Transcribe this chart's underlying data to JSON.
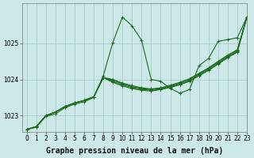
{
  "xlabel": "Graphe pression niveau de la mer (hPa)",
  "bg_color": "#cce8e8",
  "grid_color": "#aacccc",
  "line_color": "#1a6b1a",
  "xlim": [
    -0.5,
    23
  ],
  "ylim": [
    1022.55,
    1026.1
  ],
  "yticks": [
    1023,
    1024,
    1025
  ],
  "xticks": [
    0,
    1,
    2,
    3,
    4,
    5,
    6,
    7,
    8,
    9,
    10,
    11,
    12,
    13,
    14,
    15,
    16,
    17,
    18,
    19,
    20,
    21,
    22,
    23
  ],
  "series": [
    [
      1022.62,
      1022.68,
      1022.98,
      1023.05,
      1023.22,
      1023.32,
      1023.38,
      1023.5,
      1024.1,
      1025.02,
      1025.72,
      1025.48,
      1025.08,
      1024.0,
      1023.95,
      1023.75,
      1023.62,
      1023.72,
      1024.38,
      1024.58,
      1025.05,
      1025.1,
      1025.15,
      1025.72
    ],
    [
      1022.62,
      1022.7,
      1023.0,
      1023.1,
      1023.25,
      1023.35,
      1023.42,
      1023.52,
      1024.05,
      1023.92,
      1023.82,
      1023.75,
      1023.7,
      1023.68,
      1023.72,
      1023.78,
      1023.85,
      1023.95,
      1024.1,
      1024.25,
      1024.42,
      1024.6,
      1024.75,
      1025.72
    ],
    [
      1022.62,
      1022.7,
      1023.0,
      1023.1,
      1023.25,
      1023.35,
      1023.42,
      1023.52,
      1024.05,
      1023.95,
      1023.85,
      1023.78,
      1023.73,
      1023.7,
      1023.73,
      1023.8,
      1023.87,
      1023.97,
      1024.12,
      1024.28,
      1024.45,
      1024.62,
      1024.77,
      1025.72
    ],
    [
      1022.62,
      1022.7,
      1023.0,
      1023.1,
      1023.25,
      1023.35,
      1023.42,
      1023.52,
      1024.05,
      1023.98,
      1023.88,
      1023.8,
      1023.75,
      1023.72,
      1023.75,
      1023.82,
      1023.9,
      1024.0,
      1024.15,
      1024.3,
      1024.48,
      1024.65,
      1024.8,
      1025.72
    ],
    [
      1022.62,
      1022.7,
      1023.0,
      1023.1,
      1023.25,
      1023.35,
      1023.42,
      1023.52,
      1024.05,
      1024.0,
      1023.9,
      1023.83,
      1023.77,
      1023.74,
      1023.77,
      1023.84,
      1023.92,
      1024.02,
      1024.17,
      1024.32,
      1024.5,
      1024.67,
      1024.82,
      1025.72
    ]
  ],
  "marker": "+",
  "marker_size": 3,
  "linewidth": 0.8,
  "label_fontsize": 7,
  "tick_fontsize": 5.5
}
